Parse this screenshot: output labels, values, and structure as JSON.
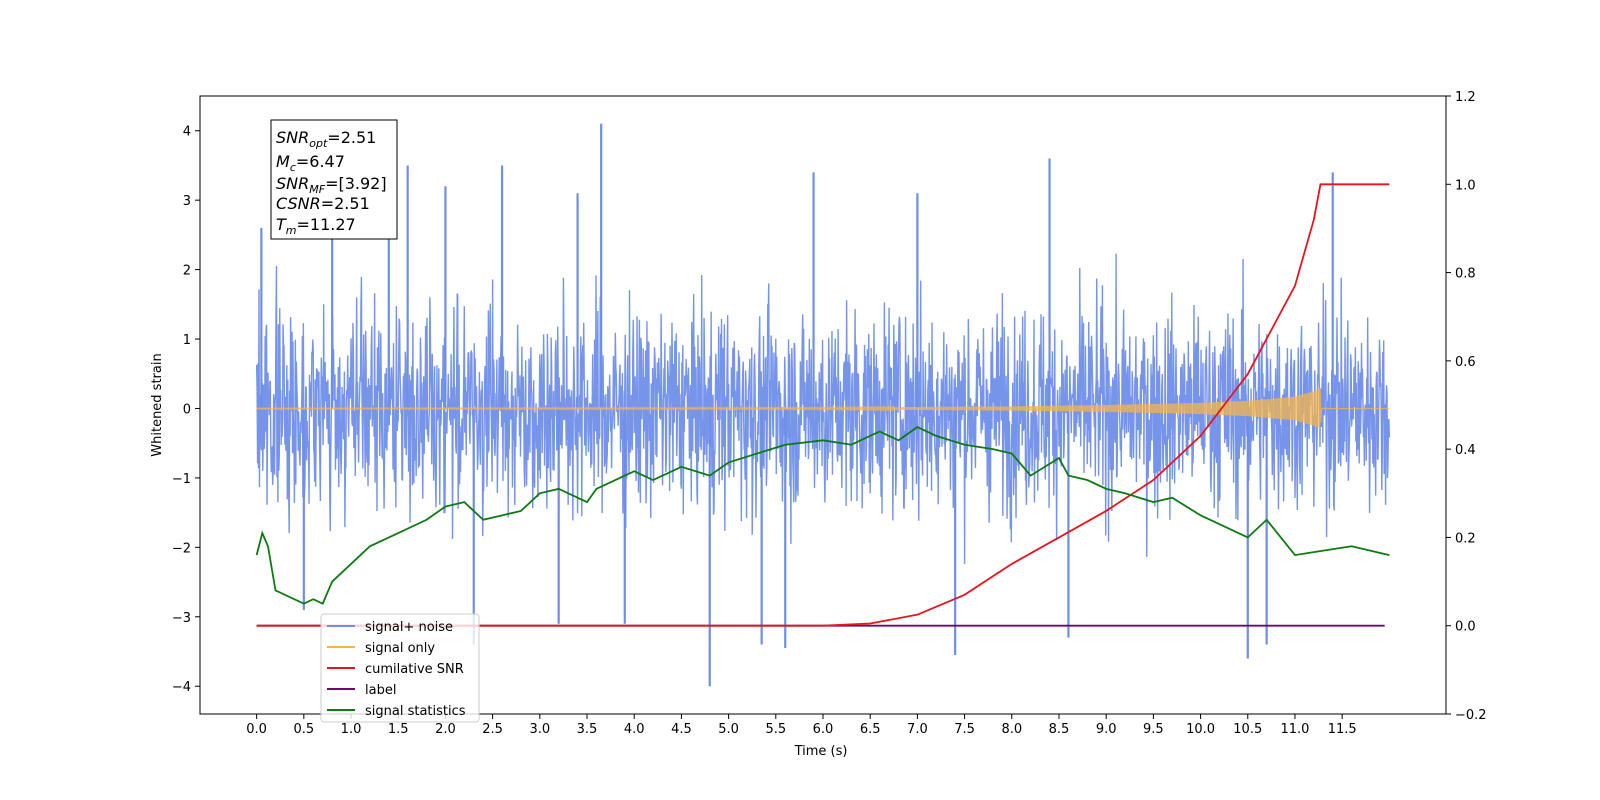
{
  "chart_data": {
    "type": "line",
    "xlabel": "Time (s)",
    "ylabel": "Whitened strain",
    "xlim": [
      -0.6,
      12.6
    ],
    "ylim": [
      -4.4,
      4.5
    ],
    "y2lim": [
      -0.2,
      1.2
    ],
    "x_ticks": [
      0.0,
      0.5,
      1.0,
      1.5,
      2.0,
      2.5,
      3.0,
      3.5,
      4.0,
      4.5,
      5.0,
      5.5,
      6.0,
      6.5,
      7.0,
      7.5,
      8.0,
      8.5,
      9.0,
      9.5,
      10.0,
      10.5,
      11.0,
      11.5
    ],
    "x_tick_labels": [
      "0.0",
      "0.5",
      "1.0",
      "1.5",
      "2.0",
      "2.5",
      "3.0",
      "3.5",
      "4.0",
      "4.5",
      "5.0",
      "5.5",
      "6.0",
      "6.5",
      "7.0",
      "7.5",
      "8.0",
      "8.5",
      "9.0",
      "9.5",
      "10.0",
      "10.5",
      "11.0",
      "11.5"
    ],
    "y_ticks": [
      -4,
      -3,
      -2,
      -1,
      0,
      1,
      2,
      3,
      4
    ],
    "y_tick_labels": [
      "−4",
      "−3",
      "−2",
      "−1",
      "0",
      "1",
      "2",
      "3",
      "4"
    ],
    "y2_ticks": [
      -0.2,
      0.0,
      0.2,
      0.4,
      0.6,
      0.8,
      1.0,
      1.2
    ],
    "y2_tick_labels": [
      "−0.2",
      "0.0",
      "0.2",
      "0.4",
      "0.6",
      "0.8",
      "1.0",
      "1.2"
    ],
    "grid": false,
    "legend_position": "lower-left",
    "annotation": [
      {
        "base": "SNR",
        "sub": "opt",
        "value": "=2.51"
      },
      {
        "base": "M",
        "sub": "c",
        "value": "=6.47"
      },
      {
        "base": "SNR",
        "sub": "MF",
        "value": "=[3.92]"
      },
      {
        "base": "CSNR",
        "sub": "",
        "value": "=2.51"
      },
      {
        "base": "T",
        "sub": "m",
        "value": "=11.27"
      }
    ],
    "series": [
      {
        "name": "signal+ noise",
        "axis": "left",
        "color": "#6f8ee8",
        "x_range": [
          0.0,
          12.0
        ],
        "approx_band": [
          -2.0,
          2.0
        ],
        "peaks": [
          {
            "x": 0.05,
            "y": 2.6
          },
          {
            "x": 0.8,
            "y": 3.2
          },
          {
            "x": 1.4,
            "y": 3.4
          },
          {
            "x": 1.6,
            "y": 3.5
          },
          {
            "x": 2.0,
            "y": 3.2
          },
          {
            "x": 2.6,
            "y": 3.5
          },
          {
            "x": 3.4,
            "y": 3.1
          },
          {
            "x": 3.65,
            "y": 4.1
          },
          {
            "x": 5.9,
            "y": 3.4
          },
          {
            "x": 7.0,
            "y": 3.1
          },
          {
            "x": 8.4,
            "y": 3.6
          },
          {
            "x": 11.4,
            "y": 3.4
          },
          {
            "x": 0.5,
            "y": -2.9
          },
          {
            "x": 2.3,
            "y": -3.4
          },
          {
            "x": 3.2,
            "y": -3.1
          },
          {
            "x": 3.9,
            "y": -3.1
          },
          {
            "x": 4.8,
            "y": -4.0
          },
          {
            "x": 5.35,
            "y": -3.4
          },
          {
            "x": 5.6,
            "y": -3.45
          },
          {
            "x": 7.4,
            "y": -3.55
          },
          {
            "x": 8.6,
            "y": -3.3
          },
          {
            "x": 10.5,
            "y": -3.6
          },
          {
            "x": 10.7,
            "y": -3.4
          }
        ]
      },
      {
        "name": "signal only",
        "axis": "left",
        "color": "#f5b54a",
        "x_range": [
          0.0,
          12.0
        ],
        "envelope": {
          "x": [
            0.0,
            6.0,
            7.0,
            8.0,
            9.0,
            10.0,
            10.5,
            11.0,
            11.2,
            11.27,
            11.28,
            12.0
          ],
          "amp": [
            0.005,
            0.01,
            0.02,
            0.03,
            0.05,
            0.08,
            0.11,
            0.17,
            0.25,
            0.3,
            0.0,
            0.0
          ]
        }
      },
      {
        "name": "cumilative SNR",
        "axis": "right",
        "color": "#e8141c",
        "x": [
          0.0,
          6.0,
          6.5,
          7.0,
          7.5,
          8.0,
          8.5,
          9.0,
          9.5,
          10.0,
          10.5,
          11.0,
          11.2,
          11.27,
          12.0
        ],
        "y": [
          0.0,
          0.0,
          0.005,
          0.025,
          0.07,
          0.14,
          0.2,
          0.26,
          0.33,
          0.43,
          0.57,
          0.77,
          0.92,
          1.0,
          1.0
        ]
      },
      {
        "name": "label",
        "axis": "right",
        "color": "#6a0a6e",
        "x": [
          0.0,
          11.95
        ],
        "y": [
          0.0,
          0.0
        ]
      },
      {
        "name": "signal statistics",
        "axis": "right",
        "color": "#0e7a12",
        "x": [
          0.0,
          0.06,
          0.12,
          0.2,
          0.3,
          0.5,
          0.6,
          0.7,
          0.8,
          1.0,
          1.2,
          1.5,
          1.8,
          2.0,
          2.2,
          2.4,
          2.6,
          2.8,
          3.0,
          3.2,
          3.4,
          3.5,
          3.6,
          3.8,
          4.0,
          4.2,
          4.5,
          4.8,
          5.0,
          5.3,
          5.6,
          6.0,
          6.3,
          6.6,
          6.8,
          7.0,
          7.2,
          7.5,
          7.8,
          8.0,
          8.2,
          8.5,
          8.6,
          8.8,
          9.0,
          9.2,
          9.5,
          9.7,
          10.0,
          10.3,
          10.5,
          10.7,
          11.0,
          11.3,
          11.6,
          12.0
        ],
        "y": [
          0.16,
          0.21,
          0.18,
          0.08,
          0.07,
          0.05,
          0.06,
          0.05,
          0.1,
          0.14,
          0.18,
          0.21,
          0.24,
          0.27,
          0.28,
          0.24,
          0.25,
          0.26,
          0.3,
          0.31,
          0.29,
          0.28,
          0.31,
          0.33,
          0.35,
          0.33,
          0.36,
          0.34,
          0.37,
          0.39,
          0.41,
          0.42,
          0.41,
          0.44,
          0.42,
          0.45,
          0.43,
          0.41,
          0.4,
          0.39,
          0.34,
          0.38,
          0.34,
          0.33,
          0.31,
          0.3,
          0.28,
          0.29,
          0.25,
          0.22,
          0.2,
          0.24,
          0.16,
          0.17,
          0.18,
          0.16
        ]
      }
    ]
  }
}
